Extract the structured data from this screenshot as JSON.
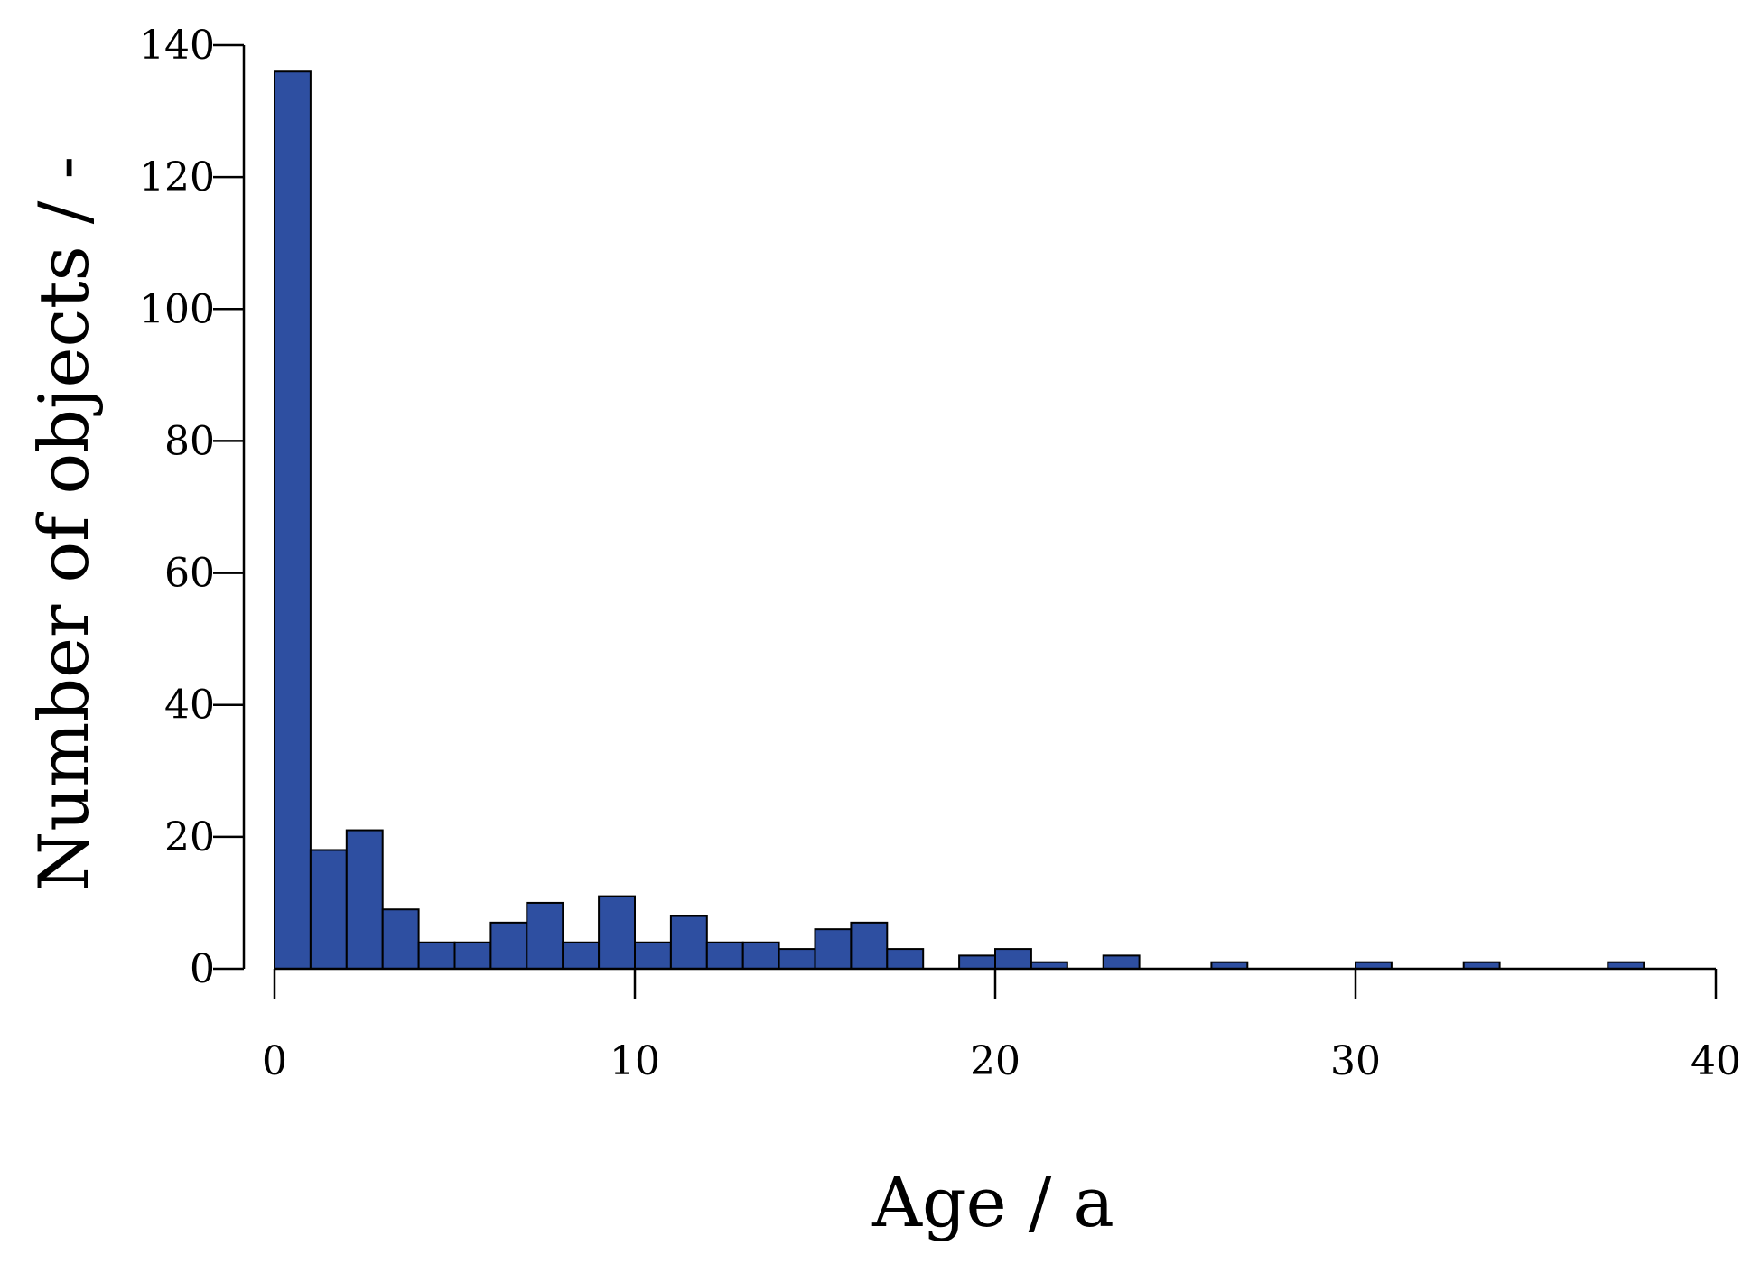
{
  "chart_data": {
    "type": "bar",
    "subtype": "histogram",
    "xlabel": "Age / a",
    "ylabel": "Number of objects / -",
    "xlim": [
      0,
      40
    ],
    "ylim": [
      0,
      140
    ],
    "xticks": [
      "0",
      "10",
      "20",
      "30",
      "40"
    ],
    "yticks": [
      "0",
      "20",
      "40",
      "60",
      "80",
      "100",
      "120",
      "140"
    ],
    "bin_width": 1,
    "bin_edges_start": [
      0,
      1,
      2,
      3,
      4,
      5,
      6,
      7,
      8,
      9,
      10,
      11,
      12,
      13,
      14,
      15,
      16,
      17,
      18,
      19,
      20,
      21,
      22,
      23,
      24,
      25,
      26,
      27,
      28,
      29,
      30,
      31,
      32,
      33,
      34,
      35,
      36,
      37
    ],
    "values": [
      136,
      18,
      21,
      9,
      4,
      4,
      7,
      10,
      4,
      11,
      4,
      8,
      4,
      4,
      3,
      6,
      7,
      3,
      0,
      2,
      3,
      1,
      0,
      2,
      0,
      0,
      1,
      0,
      0,
      0,
      1,
      0,
      0,
      1,
      0,
      0,
      0,
      1
    ],
    "bar_color": "#2E4FA1",
    "grid": false
  }
}
